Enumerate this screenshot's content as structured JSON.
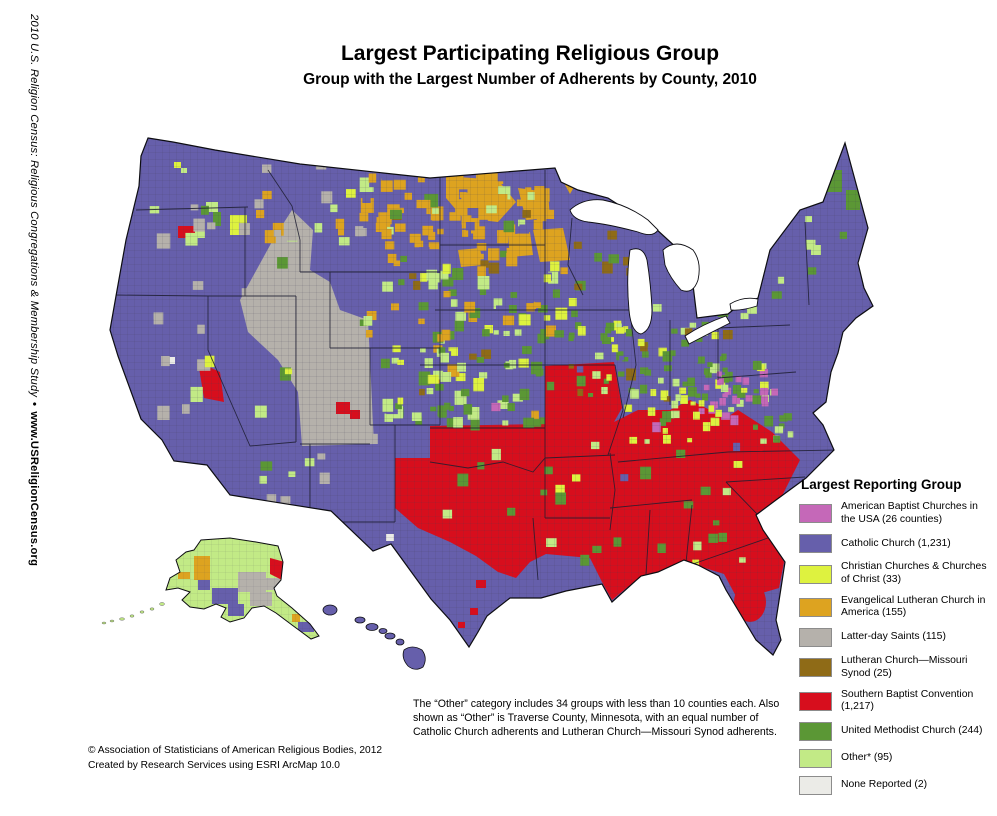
{
  "header": {
    "title": "Largest Participating Religious Group",
    "subtitle": "Group with the Largest Number of Adherents by County, 2010"
  },
  "sidebar_credit": {
    "study": "2010 U.S. Religion Census: Religious Congregations & Membership Study",
    "separator": "•",
    "url": "www.USReligionCensus.org"
  },
  "legend": {
    "title": "Largest Reporting Group",
    "items": [
      {
        "key": "abc",
        "label": "American Baptist Churches in the USA (26 counties)",
        "color": "#c568b8"
      },
      {
        "key": "cath",
        "label": "Catholic Church (1,231)",
        "color": "#665fab"
      },
      {
        "key": "ccc",
        "label": "Christian Churches & Churches of Christ (33)",
        "color": "#def23f"
      },
      {
        "key": "elca",
        "label": "Evangelical Lutheran Church in America (155)",
        "color": "#dda320"
      },
      {
        "key": "lds",
        "label": "Latter-day Saints (115)",
        "color": "#b5b1ab"
      },
      {
        "key": "lcms",
        "label": "Lutheran Church—Missouri Synod (25)",
        "color": "#8f6b17"
      },
      {
        "key": "sbc",
        "label": "Southern Baptist Convention (1,217)",
        "color": "#d70e1d"
      },
      {
        "key": "umc",
        "label": "United Methodist Church (244)",
        "color": "#5b9735"
      },
      {
        "key": "other",
        "label": "Other* (95)",
        "color": "#c2ea86"
      },
      {
        "key": "none",
        "label": "None Reported (2)",
        "color": "#ebebe7"
      }
    ]
  },
  "notes": {
    "other_note": "The “Other” category includes 34 groups with less than 10 counties each. Also shown as “Other” is Traverse County, Minnesota, with an equal number of Catholic Church adherents and Lutheran Church—Missouri Synod adherents."
  },
  "footer": {
    "line1": "© Association of Statisticians of American Religious Bodies, 2012",
    "line2": "Created by Research Services using ESRI ArcMap 10.0"
  }
}
